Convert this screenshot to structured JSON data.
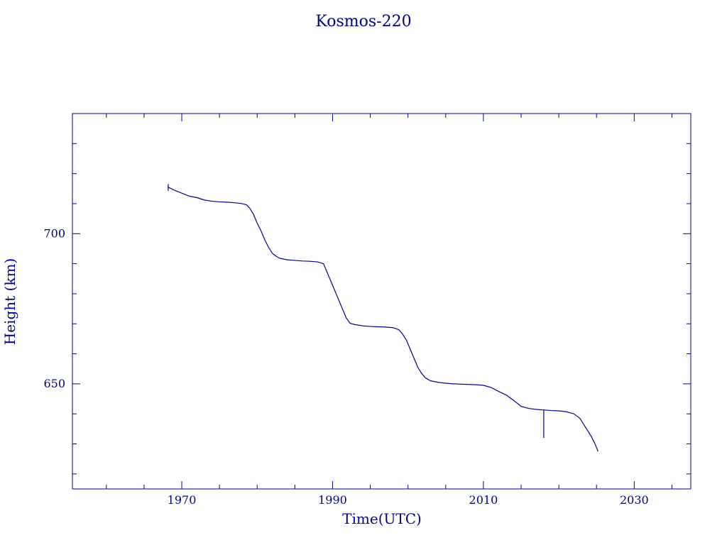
{
  "chart_data": {
    "type": "line",
    "title": "Kosmos-220",
    "xlabel": "Time(UTC)",
    "ylabel": "Height (km)",
    "xlim": [
      1955.5,
      2037.5
    ],
    "ylim": [
      615,
      740
    ],
    "x_ticks_labeled": [
      1970,
      1990,
      2010,
      2030
    ],
    "x_ticks_minor": [
      1960,
      1965,
      1970,
      1975,
      1980,
      1985,
      1990,
      1995,
      2000,
      2005,
      2010,
      2015,
      2020,
      2025,
      2030,
      2035
    ],
    "y_ticks_labeled": [
      650,
      700
    ],
    "y_ticks_minor": [
      620,
      630,
      640,
      650,
      660,
      670,
      680,
      690,
      700,
      710,
      720,
      730
    ],
    "grid": false,
    "color": "#00008b",
    "series": [
      {
        "x": [
          1968.2,
          1969.0,
          1970.0,
          1971.0,
          1972.0,
          1973.0,
          1974.0,
          1975.0,
          1976.0,
          1977.0,
          1978.0,
          1978.6,
          1979.0,
          1979.5,
          1980.0,
          1980.5,
          1981.0,
          1981.5,
          1982.0,
          1982.5,
          1983.0,
          1984.0,
          1985.0,
          1986.0,
          1987.0,
          1988.0,
          1988.8,
          1989.3,
          1989.8,
          1990.3,
          1990.8,
          1991.3,
          1991.8,
          1992.3,
          1993.0,
          1994.0,
          1995.0,
          1996.0,
          1997.0,
          1998.0,
          1998.8,
          1999.3,
          1999.8,
          2000.3,
          2000.8,
          2001.3,
          2001.8,
          2002.3,
          2003.0,
          2004.0,
          2005.0,
          2006.0,
          2007.0,
          2008.0,
          2009.0,
          2010.0,
          2011.0,
          2012.0,
          2013.0,
          2014.0,
          2015.0,
          2016.0,
          2017.0,
          2018.0,
          2019.0,
          2020.0,
          2021.0,
          2022.0,
          2022.8,
          2023.3,
          2023.8,
          2024.3,
          2024.8,
          2025.2
        ],
        "y": [
          715.5,
          714.5,
          713.5,
          712.5,
          712.0,
          711.2,
          710.8,
          710.6,
          710.5,
          710.3,
          710.0,
          709.6,
          708.5,
          706.5,
          703.5,
          701.0,
          698.0,
          695.5,
          693.5,
          692.5,
          691.8,
          691.3,
          691.1,
          690.9,
          690.8,
          690.6,
          690.0,
          687.0,
          684.0,
          681.0,
          678.0,
          675.0,
          672.0,
          670.2,
          669.7,
          669.3,
          669.1,
          669.0,
          668.9,
          668.7,
          668.0,
          666.5,
          664.5,
          661.5,
          658.5,
          655.5,
          653.5,
          652.0,
          651.0,
          650.5,
          650.2,
          650.0,
          649.9,
          649.8,
          649.7,
          649.5,
          648.8,
          647.5,
          646.3,
          644.5,
          642.5,
          641.8,
          641.5,
          641.3,
          641.1,
          641.0,
          640.7,
          640.0,
          638.5,
          636.5,
          634.5,
          632.5,
          630.0,
          627.5
        ]
      }
    ],
    "initial_tick": {
      "x": 1968.2,
      "y_from": 714.3,
      "y_to": 716.5
    },
    "spike": {
      "x": 2018.0,
      "y_from": 641.3,
      "y_to": 632.0
    }
  }
}
